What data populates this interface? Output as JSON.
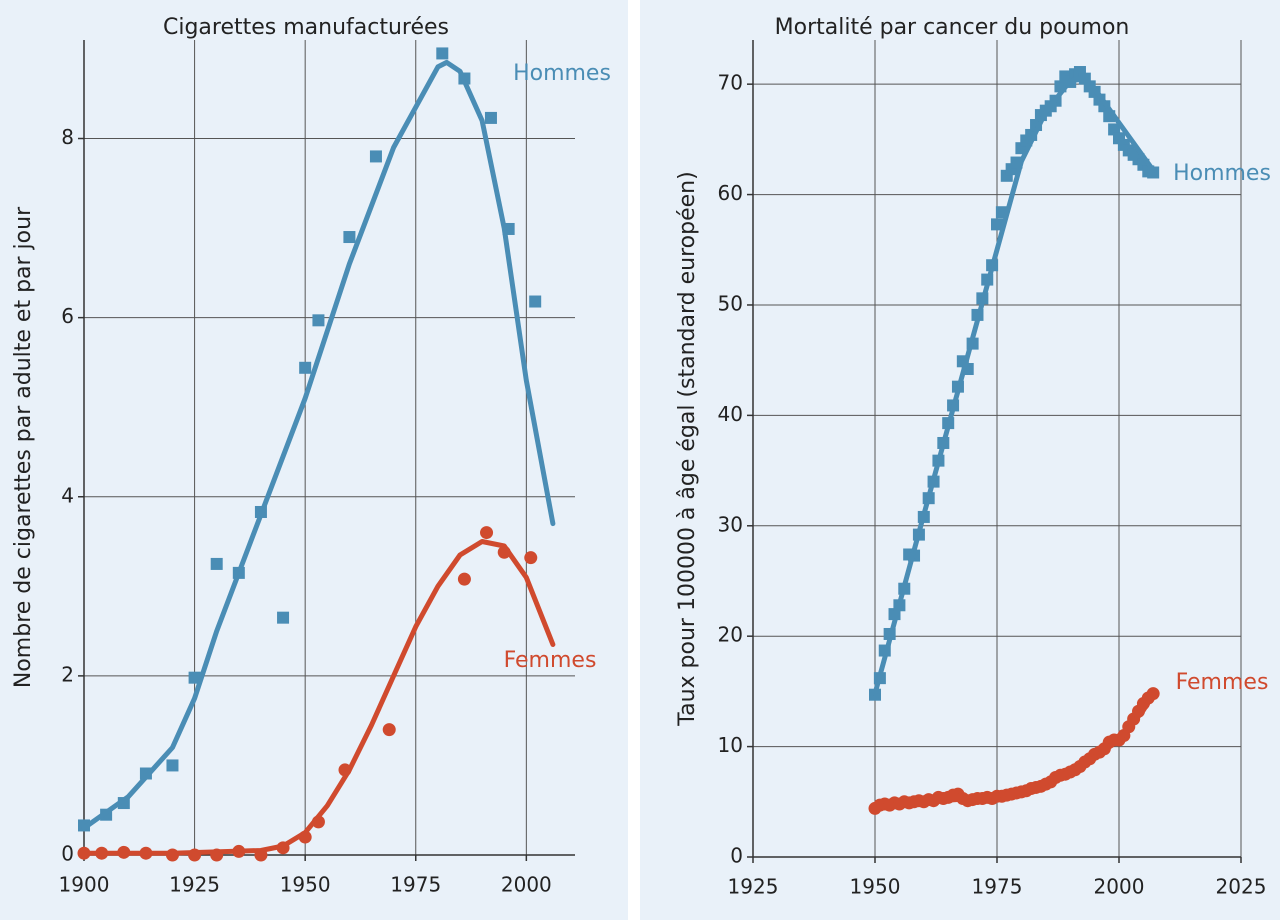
{
  "chart_data": [
    {
      "type": "scatter",
      "title": "Cigarettes manufacturées",
      "y_label": "Nombre de cigarettes par adulte et par jour",
      "xlim": [
        1900,
        2011
      ],
      "ylim": [
        0,
        9.1
      ],
      "xticks": [
        1900,
        1925,
        1950,
        1975,
        2000
      ],
      "yticks": [
        0,
        2,
        4,
        6,
        8
      ],
      "grid": true,
      "series": [
        {
          "name": "Hommes",
          "color": "#4a8db5",
          "marker": "square",
          "x": [
            1900,
            1905,
            1909,
            1914,
            1920,
            1925,
            1930,
            1935,
            1940,
            1945,
            1950,
            1953,
            1960,
            1966,
            1981,
            1986,
            1992,
            1996,
            2002
          ],
          "values": [
            0.33,
            0.45,
            0.58,
            0.91,
            1.0,
            1.98,
            3.25,
            3.15,
            3.83,
            2.65,
            5.44,
            5.97,
            6.9,
            7.8,
            8.95,
            8.67,
            8.23,
            6.99,
            6.18
          ],
          "fit": {
            "x": [
              1900,
              1910,
              1920,
              1925,
              1930,
              1940,
              1950,
              1960,
              1970,
              1980,
              1982,
              1985,
              1990,
              1995,
              2000,
              2006
            ],
            "values": [
              0.3,
              0.65,
              1.2,
              1.75,
              2.5,
              3.8,
              5.1,
              6.6,
              7.9,
              8.8,
              8.85,
              8.75,
              8.2,
              7.0,
              5.3,
              3.7
            ]
          }
        },
        {
          "name": "Femmes",
          "color": "#d04a2e",
          "marker": "circle",
          "x": [
            1900,
            1904,
            1909,
            1914,
            1920,
            1925,
            1930,
            1935,
            1940,
            1945,
            1950,
            1953,
            1959,
            1969,
            1986,
            1991,
            1995,
            2001
          ],
          "values": [
            0.02,
            0.02,
            0.03,
            0.02,
            0.0,
            0.0,
            0.0,
            0.04,
            0.0,
            0.08,
            0.2,
            0.37,
            0.95,
            1.4,
            3.08,
            3.6,
            3.38,
            3.32
          ],
          "fit": {
            "x": [
              1900,
              1920,
              1940,
              1945,
              1950,
              1955,
              1960,
              1965,
              1970,
              1975,
              1980,
              1985,
              1990,
              1995,
              2000,
              2006
            ],
            "values": [
              0.02,
              0.02,
              0.05,
              0.1,
              0.25,
              0.55,
              0.95,
              1.45,
              2.0,
              2.55,
              3.0,
              3.35,
              3.5,
              3.45,
              3.1,
              2.35
            ]
          }
        }
      ]
    },
    {
      "type": "scatter",
      "title": "Mortalité par cancer du poumon",
      "y_label": "Taux pour 100000 à âge égal (standard européen)",
      "xlim": [
        1925,
        2025
      ],
      "ylim": [
        0,
        74
      ],
      "xticks": [
        1925,
        1950,
        1975,
        2000,
        2025
      ],
      "yticks": [
        0,
        10,
        20,
        30,
        40,
        50,
        60,
        70
      ],
      "grid": true,
      "series": [
        {
          "name": "Hommes",
          "color": "#4a8db5",
          "marker": "square",
          "x": [
            1950,
            1951,
            1952,
            1953,
            1954,
            1955,
            1956,
            1957,
            1958,
            1959,
            1960,
            1961,
            1962,
            1963,
            1964,
            1965,
            1966,
            1967,
            1968,
            1969,
            1970,
            1971,
            1972,
            1973,
            1974,
            1975,
            1976,
            1977,
            1978,
            1979,
            1980,
            1981,
            1982,
            1983,
            1984,
            1985,
            1986,
            1987,
            1988,
            1989,
            1990,
            1991,
            1992,
            1993,
            1994,
            1995,
            1996,
            1997,
            1998,
            1999,
            2000,
            2001,
            2002,
            2003,
            2004,
            2005,
            2006,
            2007
          ],
          "values": [
            14.7,
            16.2,
            18.7,
            20.2,
            22.0,
            22.8,
            24.3,
            27.4,
            27.3,
            29.2,
            30.8,
            32.5,
            34.0,
            35.9,
            37.5,
            39.3,
            40.9,
            42.6,
            44.9,
            44.2,
            46.5,
            49.1,
            50.6,
            52.3,
            53.6,
            57.3,
            58.4,
            61.7,
            62.3,
            62.9,
            64.2,
            64.9,
            65.4,
            66.3,
            67.2,
            67.6,
            68.0,
            68.5,
            69.8,
            70.7,
            70.2,
            70.9,
            71.1,
            70.5,
            69.8,
            69.3,
            68.6,
            68.0,
            67.1,
            65.9,
            65.1,
            64.5,
            64.0,
            63.6,
            63.2,
            62.7,
            62.1,
            62.0
          ],
          "fit": {
            "x": [
              1950,
              1960,
              1970,
              1975,
              1980,
              1985,
              1990,
              1993,
              1995,
              2000,
              2007
            ],
            "values": [
              14.8,
              31,
              47,
              55,
              63,
              67.5,
              70.3,
              70.5,
              69.6,
              66.5,
              62.2
            ]
          }
        },
        {
          "name": "Femmes",
          "color": "#d04a2e",
          "marker": "circle",
          "x": [
            1950,
            1951,
            1952,
            1953,
            1954,
            1955,
            1956,
            1957,
            1958,
            1959,
            1960,
            1961,
            1962,
            1963,
            1964,
            1965,
            1966,
            1967,
            1968,
            1969,
            1970,
            1971,
            1972,
            1973,
            1974,
            1975,
            1976,
            1977,
            1978,
            1979,
            1980,
            1981,
            1982,
            1983,
            1984,
            1985,
            1986,
            1987,
            1988,
            1989,
            1990,
            1991,
            1992,
            1993,
            1994,
            1995,
            1996,
            1997,
            1998,
            1999,
            2000,
            2001,
            2002,
            2003,
            2004,
            2005,
            2006,
            2007
          ],
          "values": [
            4.4,
            4.7,
            4.8,
            4.7,
            4.9,
            4.8,
            5.0,
            4.9,
            5.0,
            5.1,
            5.0,
            5.2,
            5.1,
            5.4,
            5.3,
            5.4,
            5.6,
            5.7,
            5.3,
            5.1,
            5.2,
            5.3,
            5.3,
            5.4,
            5.3,
            5.5,
            5.5,
            5.6,
            5.7,
            5.8,
            5.9,
            6.0,
            6.2,
            6.3,
            6.4,
            6.6,
            6.8,
            7.2,
            7.4,
            7.5,
            7.7,
            7.9,
            8.2,
            8.6,
            8.9,
            9.3,
            9.5,
            9.8,
            10.4,
            10.6,
            10.6,
            11.0,
            11.8,
            12.5,
            13.2,
            13.9,
            14.4,
            14.8
          ],
          "fit": {
            "x": [
              1950,
              1960,
              1970,
              1980,
              1990,
              1995,
              2000,
              2005,
              2007
            ],
            "values": [
              4.5,
              5.0,
              5.3,
              5.9,
              7.7,
              9.0,
              10.6,
              13.3,
              14.7
            ]
          }
        }
      ]
    }
  ]
}
